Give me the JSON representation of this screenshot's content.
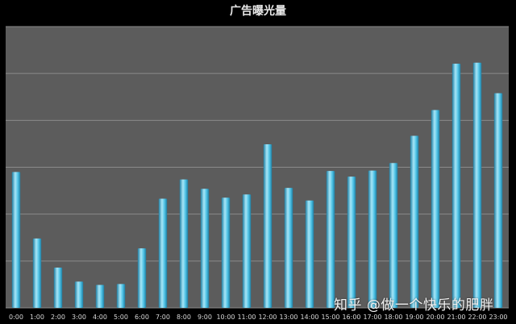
{
  "chart_data": {
    "type": "bar",
    "title": "广告曝光量",
    "xlabel": "",
    "ylabel": "",
    "categories": [
      "0:00",
      "1:00",
      "2:00",
      "3:00",
      "4:00",
      "5:00",
      "6:00",
      "7:00",
      "8:00",
      "9:00",
      "10:00",
      "11:00",
      "12:00",
      "13:00",
      "14:00",
      "15:00",
      "16:00",
      "17:00",
      "18:00",
      "19:00",
      "20:00",
      "21:00",
      "22:00",
      "23:00"
    ],
    "values": [
      2.9,
      1.48,
      0.86,
      0.56,
      0.49,
      0.51,
      1.27,
      2.33,
      2.74,
      2.54,
      2.35,
      2.42,
      3.49,
      2.56,
      2.29,
      2.92,
      2.8,
      2.93,
      3.09,
      3.67,
      4.22,
      5.21,
      5.23,
      4.58
    ],
    "ylim": [
      0,
      6
    ],
    "y_ticks": [
      0,
      1,
      2,
      3,
      4,
      5,
      6
    ],
    "y_tick_labels_visible": false,
    "grid": true,
    "colors": {
      "background": "#000000",
      "plot_area": "#5c5c5c",
      "gridline": "#8a8a8a",
      "bar": "#4fc3e6",
      "bar_highlight": "#a8e6f7",
      "bar_shadow": "#1f7fa3"
    }
  },
  "watermark": {
    "text": "知乎 @做一个快乐的肥胖"
  }
}
